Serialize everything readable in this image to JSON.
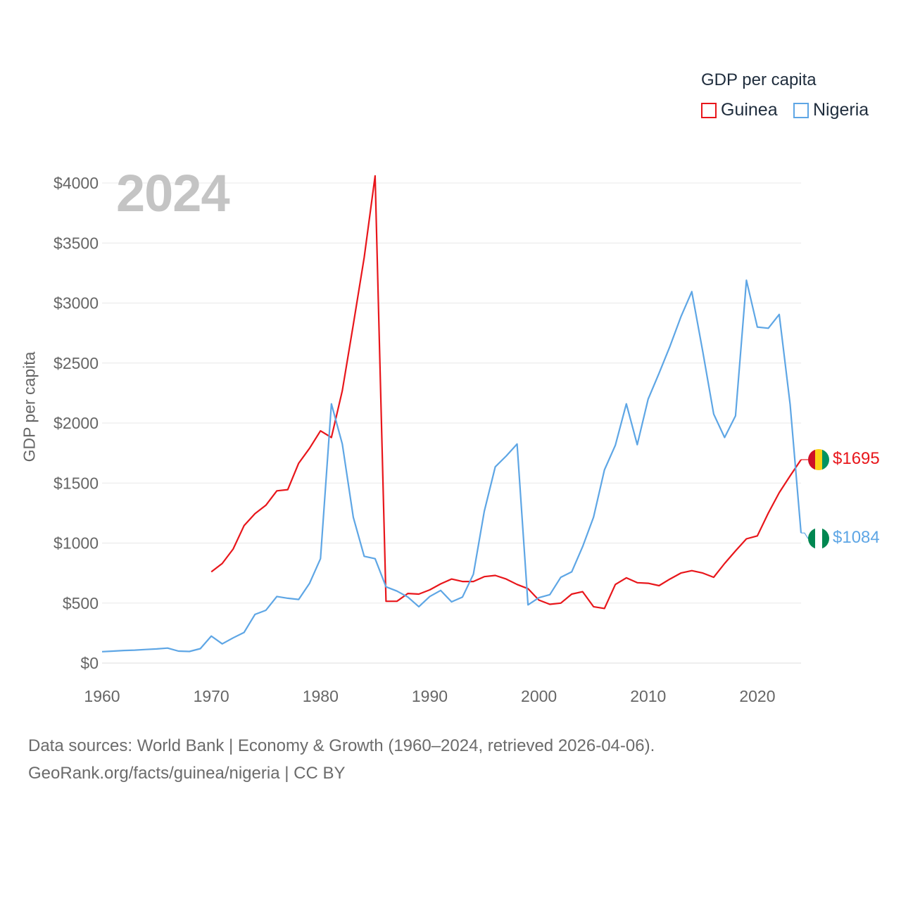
{
  "legend": {
    "title": "GDP per capita",
    "items": [
      {
        "label": "Guinea",
        "color": "#e8161b"
      },
      {
        "label": "Nigeria",
        "color": "#5ea6e5"
      }
    ]
  },
  "year_badge": "2024",
  "end_labels": {
    "guinea": "$1695",
    "nigeria": "$1084"
  },
  "flags": {
    "guinea": [
      "#ce1126",
      "#fcd116",
      "#009460"
    ],
    "nigeria": [
      "#008751",
      "#ffffff",
      "#008751"
    ]
  },
  "footer": {
    "line1": "Data sources: World Bank | Economy & Growth (1960–2024, retrieved 2026-04-06).",
    "line2": "GeoRank.org/facts/guinea/nigeria | CC BY"
  },
  "chart_data": {
    "type": "line",
    "title": "GDP per capita",
    "xlabel": "",
    "ylabel": "GDP per capita",
    "xlim": [
      1960,
      2024
    ],
    "ylim": [
      0,
      4000
    ],
    "x_ticks": [
      1960,
      1970,
      1980,
      1990,
      2000,
      2010,
      2020
    ],
    "y_ticks": [
      0,
      500,
      1000,
      1500,
      2000,
      2500,
      3000,
      3500,
      4000
    ],
    "y_tick_labels": [
      "$0",
      "$500",
      "$1000",
      "$1500",
      "$2000",
      "$2500",
      "$3000",
      "$3500",
      "$4000"
    ],
    "grid": true,
    "legend_position": "top-right",
    "series": [
      {
        "name": "Guinea",
        "color": "#e8161b",
        "x": [
          1970,
          1971,
          1972,
          1973,
          1974,
          1975,
          1976,
          1977,
          1978,
          1979,
          1980,
          1981,
          1982,
          1983,
          1984,
          1985,
          1986,
          1987,
          1988,
          1989,
          1990,
          1991,
          1992,
          1993,
          1994,
          1995,
          1996,
          1997,
          1998,
          1999,
          2000,
          2001,
          2002,
          2003,
          2004,
          2005,
          2006,
          2007,
          2008,
          2009,
          2010,
          2011,
          2012,
          2013,
          2014,
          2015,
          2016,
          2017,
          2018,
          2019,
          2020,
          2021,
          2022,
          2023,
          2024
        ],
        "values": [
          760,
          830,
          950,
          1145,
          1245,
          1315,
          1435,
          1445,
          1665,
          1790,
          1935,
          1880,
          2270,
          2820,
          3380,
          4060,
          515,
          515,
          580,
          575,
          610,
          660,
          700,
          680,
          680,
          720,
          730,
          700,
          655,
          620,
          525,
          490,
          500,
          575,
          595,
          470,
          455,
          655,
          710,
          670,
          665,
          645,
          700,
          750,
          770,
          750,
          715,
          830,
          935,
          1035,
          1060,
          1250,
          1420,
          1560,
          1695
        ]
      },
      {
        "name": "Nigeria",
        "color": "#5ea6e5",
        "x": [
          1960,
          1961,
          1962,
          1963,
          1964,
          1965,
          1966,
          1967,
          1968,
          1969,
          1970,
          1971,
          1972,
          1973,
          1974,
          1975,
          1976,
          1977,
          1978,
          1979,
          1980,
          1981,
          1982,
          1983,
          1984,
          1985,
          1986,
          1987,
          1988,
          1989,
          1990,
          1991,
          1992,
          1993,
          1994,
          1995,
          1996,
          1997,
          1998,
          1999,
          2000,
          2001,
          2002,
          2003,
          2004,
          2005,
          2006,
          2007,
          2008,
          2009,
          2010,
          2011,
          2012,
          2013,
          2014,
          2015,
          2016,
          2017,
          2018,
          2019,
          2020,
          2021,
          2022,
          2023,
          2024
        ],
        "values": [
          95,
          100,
          105,
          108,
          113,
          118,
          125,
          100,
          97,
          120,
          225,
          160,
          210,
          255,
          405,
          440,
          555,
          540,
          530,
          665,
          870,
          2160,
          1825,
          1215,
          890,
          870,
          635,
          600,
          550,
          470,
          555,
          605,
          510,
          550,
          740,
          1265,
          1635,
          1725,
          1825,
          485,
          545,
          570,
          715,
          760,
          970,
          1215,
          1610,
          1815,
          2160,
          1820,
          2200,
          2415,
          2640,
          2885,
          3095,
          2595,
          2075,
          1880,
          2060,
          3190,
          2800,
          2790,
          2905,
          2155,
          1084
        ]
      }
    ]
  }
}
